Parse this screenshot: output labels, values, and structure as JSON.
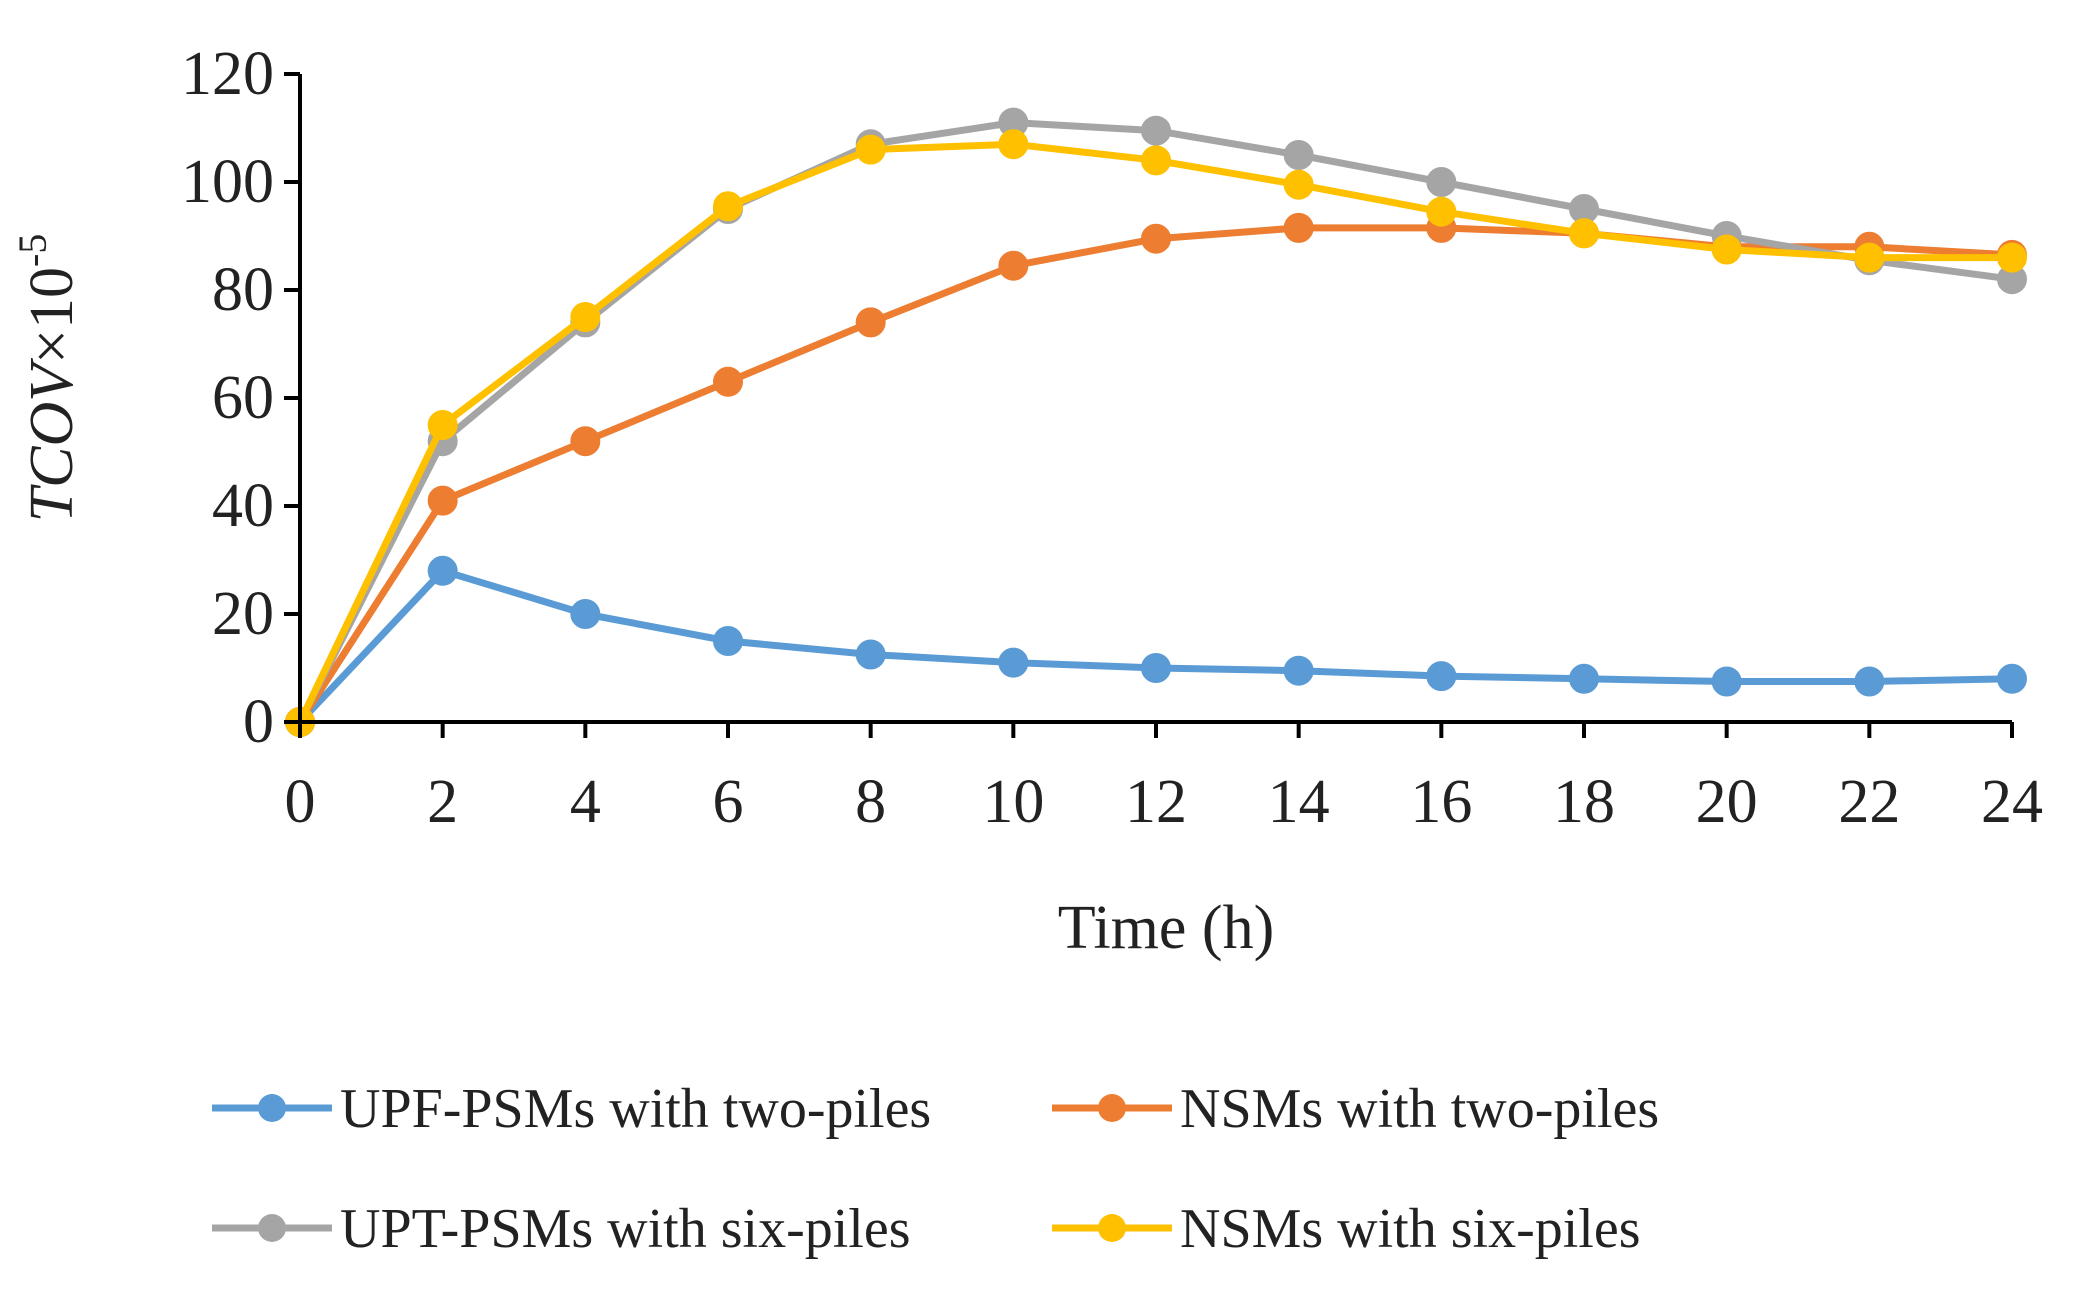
{
  "chart_data": {
    "type": "line",
    "title": "",
    "xlabel": "Time (h)",
    "ylabel": {
      "main": "TCOV",
      "times": "×10",
      "exponent": "-5"
    },
    "x": [
      0,
      2,
      4,
      6,
      8,
      10,
      12,
      14,
      16,
      18,
      20,
      22,
      24
    ],
    "xticks": [
      "0",
      "2",
      "4",
      "6",
      "8",
      "10",
      "12",
      "14",
      "16",
      "18",
      "20",
      "22",
      "24"
    ],
    "yticks": [
      "0",
      "20",
      "40",
      "60",
      "80",
      "100",
      "120"
    ],
    "xlim": [
      0,
      24
    ],
    "ylim": [
      0,
      120
    ],
    "grid": false,
    "legend_position": "bottom",
    "series": [
      {
        "name": "UPF-PSMs with two-piles",
        "color": "#5B9BD5",
        "values": [
          0,
          28,
          20,
          15,
          12.5,
          11,
          10,
          9.5,
          8.5,
          8,
          7.5,
          7.5,
          8
        ]
      },
      {
        "name": "NSMs with two-piles",
        "color": "#ED7D31",
        "values": [
          0,
          41,
          52,
          63,
          74,
          84.5,
          89.5,
          91.5,
          91.5,
          90.5,
          88,
          88,
          86.5
        ]
      },
      {
        "name": "UPT-PSMs with six-piles",
        "color": "#A5A5A5",
        "values": [
          0,
          52,
          74,
          95,
          107,
          111,
          109.5,
          105,
          100,
          95,
          90,
          85.5,
          82
        ]
      },
      {
        "name": "NSMs with six-piles",
        "color": "#FFC000",
        "values": [
          0,
          55,
          75,
          95.5,
          106,
          107,
          104,
          99.5,
          94.5,
          90.5,
          87.5,
          86,
          86
        ]
      }
    ]
  }
}
